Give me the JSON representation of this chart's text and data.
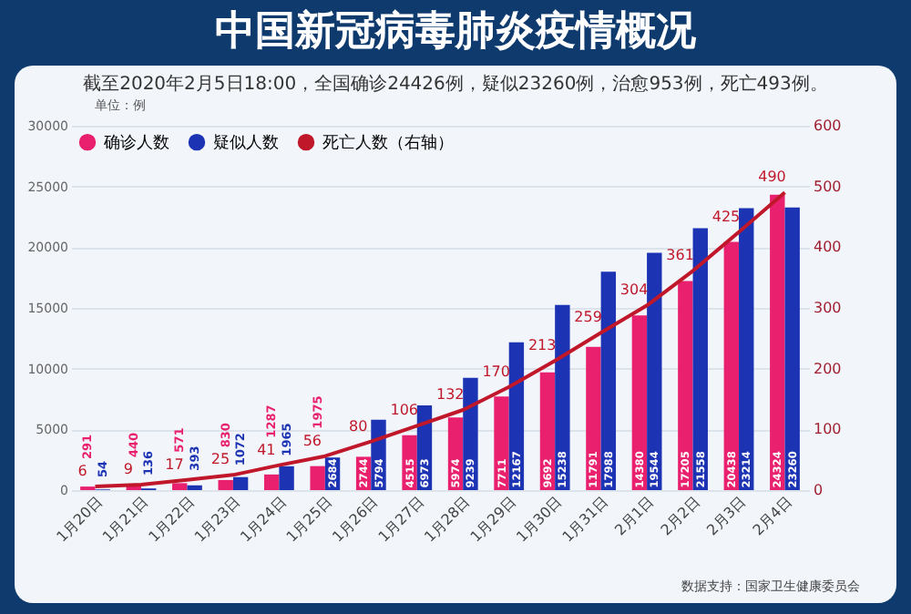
{
  "chart_data": {
    "type": "bar",
    "title": "中国新冠病毒肺炎疫情概况",
    "subtitle": "截至2020年2月5日18:00，全国确诊24426例，疑似23260例，治愈953例，死亡493例。",
    "annotations": [
      "单位：例",
      "数据支持：国家卫生健康委员会"
    ],
    "categories": [
      "1月20日",
      "1月21日",
      "1月22日",
      "1月23日",
      "1月24日",
      "1月25日",
      "1月26日",
      "1月27日",
      "1月28日",
      "1月29日",
      "1月30日",
      "1月31日",
      "2月1日",
      "2月2日",
      "2月3日",
      "2月4日"
    ],
    "series": [
      {
        "name": "确诊人数",
        "color": "#e8206e",
        "values": [
          291,
          440,
          571,
          830,
          1287,
          1975,
          2744,
          4515,
          5974,
          7711,
          9692,
          11791,
          14380,
          17205,
          20438,
          24324
        ]
      },
      {
        "name": "疑似人数",
        "color": "#1c34b4",
        "values": [
          54,
          136,
          393,
          1072,
          1965,
          2684,
          5794,
          6973,
          9239,
          12167,
          15238,
          17988,
          19544,
          21558,
          23214,
          23260
        ]
      },
      {
        "name": "死亡人数（右轴）",
        "type": "line",
        "axis": "y2",
        "color": "#c0182a",
        "values": [
          6,
          9,
          17,
          25,
          41,
          56,
          80,
          106,
          132,
          170,
          213,
          259,
          304,
          361,
          425,
          490
        ]
      }
    ],
    "ylim": [
      0,
      30000
    ],
    "yticks": [
      0,
      5000,
      10000,
      15000,
      20000,
      25000,
      30000
    ],
    "y2lim": [
      0,
      600
    ],
    "y2ticks": [
      0,
      100,
      200,
      300,
      400,
      500,
      600
    ],
    "grid": "y",
    "legend": "top left",
    "data_labels": true
  }
}
